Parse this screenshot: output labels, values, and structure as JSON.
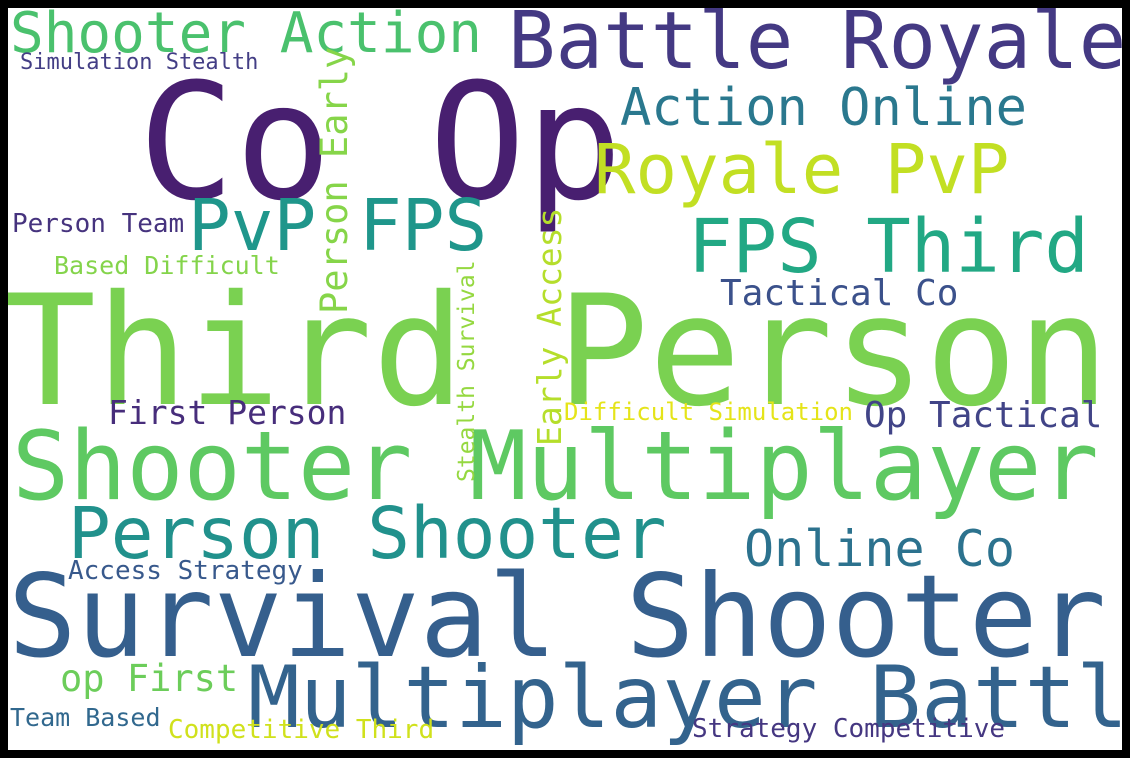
{
  "phrases": {
    "third_person": {
      "text": "Third Person",
      "color": "#7ad151"
    },
    "survival_shooter": {
      "text": "Survival Shooter",
      "color": "#355f8d"
    },
    "shooter_multiplayer": {
      "text": "Shooter Multiplayer",
      "color": "#5ec962"
    },
    "co_op": {
      "text": "Co Op",
      "color": "#481f70"
    },
    "multiplayer_battle": {
      "text": "Multiplayer Battle",
      "color": "#33638d"
    },
    "battle_royale": {
      "text": "Battle Royale",
      "color": "#443983"
    },
    "person_shooter": {
      "text": "Person Shooter",
      "color": "#21918c"
    },
    "royale_pvp": {
      "text": "Royale PvP",
      "color": "#c2df23"
    },
    "fps_third": {
      "text": "FPS Third",
      "color": "#22a884"
    },
    "pvp_fps": {
      "text": "PvP FPS",
      "color": "#1f968b"
    },
    "shooter_action": {
      "text": "Shooter Action",
      "color": "#4ac16d"
    },
    "action_online": {
      "text": "Action Online",
      "color": "#2a788e"
    },
    "online_co": {
      "text": "Online Co",
      "color": "#2c728e"
    },
    "tactical_co": {
      "text": "Tactical Co",
      "color": "#3b518b"
    },
    "op_tactical": {
      "text": "Op Tactical",
      "color": "#414487"
    },
    "first_person": {
      "text": "First Person",
      "color": "#472d7b"
    },
    "op_first": {
      "text": "op First",
      "color": "#6ccd5a"
    },
    "person_early": {
      "text": "Person Early",
      "color": "#86d549"
    },
    "early_access": {
      "text": "Early Access",
      "color": "#b5de2b"
    },
    "access_strategy": {
      "text": "Access Strategy",
      "color": "#38598c"
    },
    "person_team": {
      "text": "Person Team",
      "color": "#46337e"
    },
    "based_difficult": {
      "text": "Based Difficult",
      "color": "#84d44b"
    },
    "stealth_survival": {
      "text": "Stealth Survival",
      "color": "#95d840"
    },
    "difficult_simulation": {
      "text": "Difficult Simulation",
      "color": "#e5e419"
    },
    "simulation_stealth": {
      "text": "Simulation Stealth",
      "color": "#433e85"
    },
    "team_based": {
      "text": "Team Based",
      "color": "#31688e"
    },
    "competitive_third": {
      "text": "Competitive Third",
      "color": "#d0e11c"
    },
    "strategy_competitive": {
      "text": "Strategy Competitive",
      "color": "#453781"
    }
  }
}
